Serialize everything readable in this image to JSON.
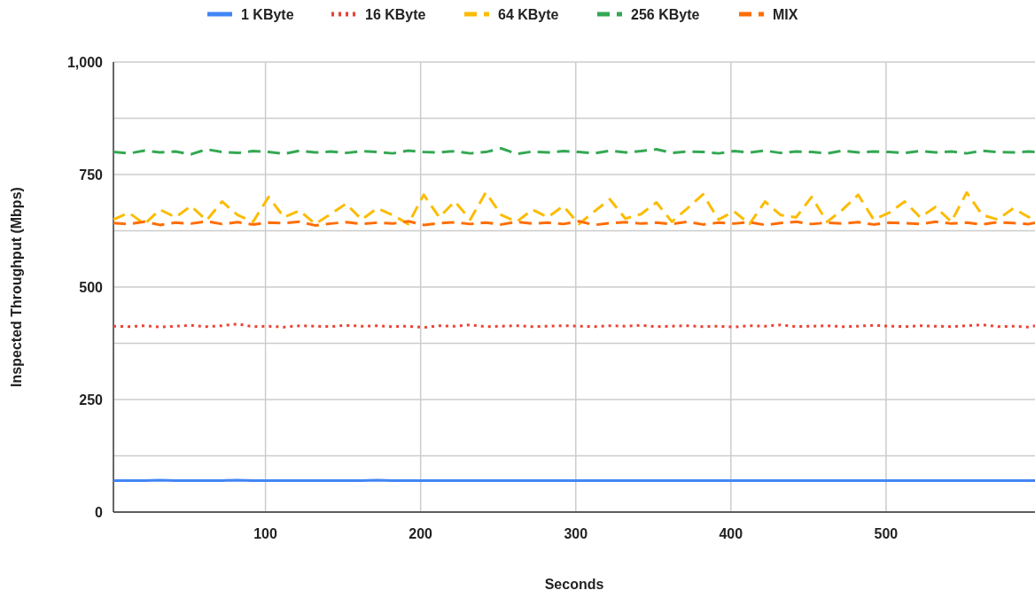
{
  "chart_data": {
    "type": "line",
    "xlabel": "Seconds",
    "ylabel": "Inspected Throughput (Mbps)",
    "x": [
      2,
      12,
      22,
      32,
      42,
      52,
      62,
      72,
      82,
      92,
      102,
      112,
      122,
      132,
      142,
      152,
      162,
      172,
      182,
      192,
      202,
      212,
      222,
      232,
      242,
      252,
      262,
      272,
      282,
      292,
      302,
      312,
      322,
      332,
      342,
      352,
      362,
      372,
      382,
      392,
      402,
      412,
      422,
      432,
      442,
      452,
      462,
      472,
      482,
      492,
      502,
      512,
      522,
      532,
      542,
      552,
      562,
      572,
      582,
      592,
      596
    ],
    "xlim": [
      2,
      596
    ],
    "xticks": [
      100,
      200,
      300,
      400,
      500
    ],
    "ylim": [
      0,
      1000
    ],
    "yticks": [
      0,
      {
        "value": 125,
        "label": null
      },
      {
        "value": 250,
        "label": "250"
      },
      {
        "value": 375,
        "label": null
      },
      {
        "value": 500,
        "label": "500"
      },
      {
        "value": 625,
        "label": null
      },
      {
        "value": 750,
        "label": "750"
      },
      {
        "value": 875,
        "label": null
      },
      {
        "value": 1000,
        "label": "1,000"
      }
    ],
    "grid": true,
    "legend": "top",
    "series": [
      {
        "name": "1 KByte",
        "color": "#4285f4",
        "line_style": "solid",
        "values": [
          70,
          70,
          70,
          71,
          70,
          70,
          70,
          70,
          71,
          70,
          70,
          70,
          70,
          70,
          70,
          70,
          70,
          71,
          70,
          70,
          70,
          70,
          70,
          70,
          70,
          70,
          70,
          70,
          70,
          70,
          70,
          70,
          70,
          70,
          70,
          70,
          70,
          70,
          70,
          70,
          70,
          70,
          70,
          70,
          70,
          70,
          70,
          70,
          70,
          70,
          70,
          70,
          70,
          70,
          70,
          70,
          70,
          70,
          70,
          70,
          70
        ]
      },
      {
        "name": "16 KByte",
        "color": "#ea4335",
        "line_style": "dotted",
        "values": [
          413,
          412,
          414,
          411,
          413,
          415,
          412,
          414,
          418,
          412,
          413,
          411,
          414,
          413,
          412,
          415,
          413,
          414,
          412,
          413,
          410,
          414,
          413,
          416,
          412,
          413,
          414,
          412,
          413,
          414,
          413,
          412,
          414,
          413,
          415,
          412,
          413,
          414,
          412,
          413,
          411,
          414,
          413,
          416,
          412,
          413,
          414,
          412,
          413,
          415,
          413,
          412,
          414,
          413,
          412,
          414,
          416,
          412,
          413,
          411,
          414
        ]
      },
      {
        "name": "64 KByte",
        "color": "#fbbc04",
        "line_style": "dashed",
        "values": [
          650,
          665,
          640,
          672,
          655,
          680,
          648,
          690,
          660,
          645,
          700,
          655,
          670,
          640,
          662,
          685,
          650,
          675,
          660,
          640,
          705,
          655,
          690,
          650,
          710,
          660,
          645,
          672,
          655,
          680,
          640,
          668,
          695,
          652,
          662,
          688,
          645,
          675,
          706,
          650,
          668,
          640,
          690,
          660,
          655,
          700,
          645,
          672,
          705,
          650,
          665,
          690,
          655,
          678,
          645,
          710,
          660,
          650,
          675,
          655,
          668
        ]
      },
      {
        "name": "256 KByte",
        "color": "#34a853",
        "line_style": "dashed",
        "values": [
          800,
          797,
          803,
          799,
          801,
          795,
          806,
          800,
          798,
          802,
          800,
          796,
          803,
          799,
          801,
          798,
          802,
          800,
          797,
          803,
          800,
          799,
          802,
          797,
          800,
          808,
          796,
          801,
          799,
          802,
          800,
          797,
          803,
          799,
          802,
          806,
          798,
          801,
          800,
          797,
          802,
          799,
          803,
          798,
          801,
          800,
          797,
          803,
          799,
          801,
          800,
          798,
          802,
          799,
          801,
          797,
          803,
          800,
          799,
          801,
          800
        ]
      },
      {
        "name": "MIX",
        "color": "#ff6d01",
        "line_style": "dashed",
        "values": [
          642,
          640,
          645,
          638,
          643,
          641,
          646,
          640,
          644,
          639,
          643,
          642,
          645,
          637,
          641,
          644,
          640,
          643,
          641,
          646,
          638,
          642,
          644,
          640,
          643,
          639,
          645,
          641,
          643,
          640,
          646,
          638,
          642,
          644,
          641,
          643,
          640,
          645,
          639,
          643,
          641,
          644,
          638,
          642,
          645,
          640,
          643,
          641,
          644,
          639,
          643,
          642,
          640,
          645,
          641,
          643,
          639,
          644,
          642,
          640,
          643
        ]
      }
    ]
  }
}
